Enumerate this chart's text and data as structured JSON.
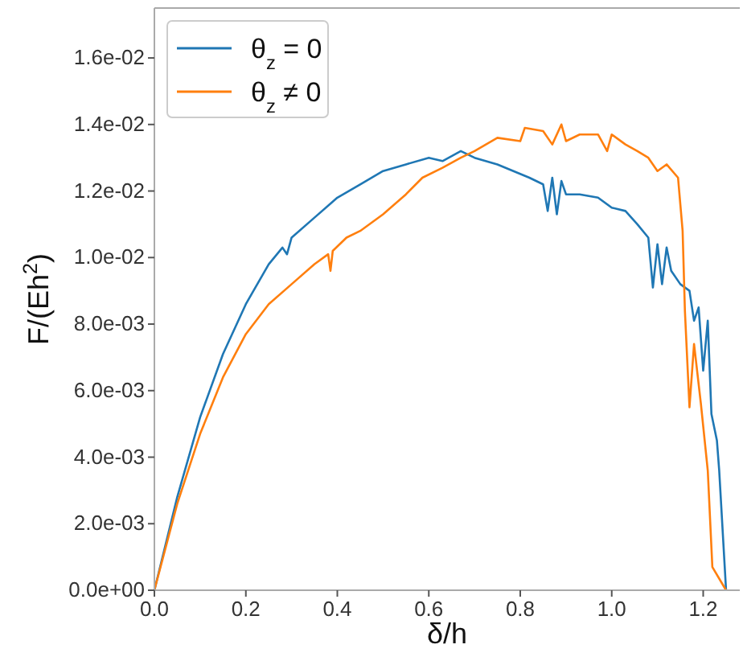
{
  "chart_data": {
    "type": "line",
    "xlabel": "δ/h",
    "ylabel": "F/(Eh$^{2}$)",
    "xlim": [
      0,
      1.28
    ],
    "ylim": [
      0,
      0.0175
    ],
    "xticks": [
      {
        "value": 0,
        "label": "0.0"
      },
      {
        "value": 0.2,
        "label": "0.2"
      },
      {
        "value": 0.4,
        "label": "0.4"
      },
      {
        "value": 0.6,
        "label": "0.6"
      },
      {
        "value": 0.8,
        "label": "0.8"
      },
      {
        "value": 1.0,
        "label": "1.0"
      },
      {
        "value": 1.2,
        "label": "1.2"
      }
    ],
    "yticks": [
      {
        "value": 0,
        "label": "0.0e+00"
      },
      {
        "value": 0.002,
        "label": "2.0e-03"
      },
      {
        "value": 0.004,
        "label": "4.0e-03"
      },
      {
        "value": 0.006,
        "label": "6.0e-03"
      },
      {
        "value": 0.008,
        "label": "8.0e-03"
      },
      {
        "value": 0.01,
        "label": "1.0e-02"
      },
      {
        "value": 0.012,
        "label": "1.2e-02"
      },
      {
        "value": 0.014,
        "label": "1.4e-02"
      },
      {
        "value": 0.016,
        "label": "1.6e-02"
      }
    ],
    "legend": "top left",
    "grid": false,
    "line_style": "solid",
    "series": [
      {
        "name": "θ$_{z}$ = 0",
        "color": "#1f77b4",
        "x": [
          0,
          0.05,
          0.1,
          0.15,
          0.2,
          0.25,
          0.28,
          0.29,
          0.3,
          0.35,
          0.4,
          0.45,
          0.5,
          0.55,
          0.6,
          0.63,
          0.67,
          0.7,
          0.75,
          0.82,
          0.85,
          0.86,
          0.87,
          0.88,
          0.89,
          0.9,
          0.93,
          0.97,
          1.0,
          1.03,
          1.056,
          1.08,
          1.09,
          1.1,
          1.11,
          1.12,
          1.13,
          1.15,
          1.17,
          1.18,
          1.19,
          1.2,
          1.21,
          1.218,
          1.23,
          1.235,
          1.25
        ],
        "values": [
          0,
          0.0028,
          0.0052,
          0.0071,
          0.0086,
          0.0098,
          0.0103,
          0.0101,
          0.0106,
          0.0112,
          0.0118,
          0.0122,
          0.0126,
          0.0128,
          0.013,
          0.0129,
          0.0132,
          0.013,
          0.0128,
          0.0124,
          0.0122,
          0.0114,
          0.0124,
          0.0113,
          0.0123,
          0.0119,
          0.0119,
          0.0118,
          0.0115,
          0.0114,
          0.011,
          0.0106,
          0.0091,
          0.0104,
          0.0092,
          0.0103,
          0.0096,
          0.0092,
          0.009,
          0.0081,
          0.0085,
          0.0066,
          0.0081,
          0.0053,
          0.0045,
          0.0036,
          0
        ]
      },
      {
        "name": "θ$_{z}$ ≠ 0",
        "color": "#ff7f0e",
        "x": [
          0,
          0.05,
          0.1,
          0.15,
          0.2,
          0.25,
          0.3,
          0.35,
          0.38,
          0.385,
          0.39,
          0.42,
          0.45,
          0.5,
          0.55,
          0.586,
          0.63,
          0.67,
          0.7,
          0.75,
          0.8,
          0.81,
          0.85,
          0.87,
          0.89,
          0.9,
          0.93,
          0.97,
          0.99,
          1.0,
          1.03,
          1.056,
          1.08,
          1.1,
          1.12,
          1.145,
          1.155,
          1.16,
          1.17,
          1.18,
          1.195,
          1.21,
          1.22,
          1.25
        ],
        "values": [
          0,
          0.0026,
          0.0047,
          0.0064,
          0.0077,
          0.0086,
          0.0092,
          0.0098,
          0.0101,
          0.0096,
          0.0102,
          0.0106,
          0.0108,
          0.0113,
          0.0119,
          0.0124,
          0.0127,
          0.013,
          0.0132,
          0.0136,
          0.0135,
          0.0139,
          0.0138,
          0.0134,
          0.014,
          0.0135,
          0.0137,
          0.0137,
          0.0132,
          0.0137,
          0.0134,
          0.0132,
          0.013,
          0.0126,
          0.0128,
          0.0124,
          0.0108,
          0.0084,
          0.0055,
          0.0074,
          0.0056,
          0.0036,
          0.0007,
          0
        ]
      }
    ]
  }
}
